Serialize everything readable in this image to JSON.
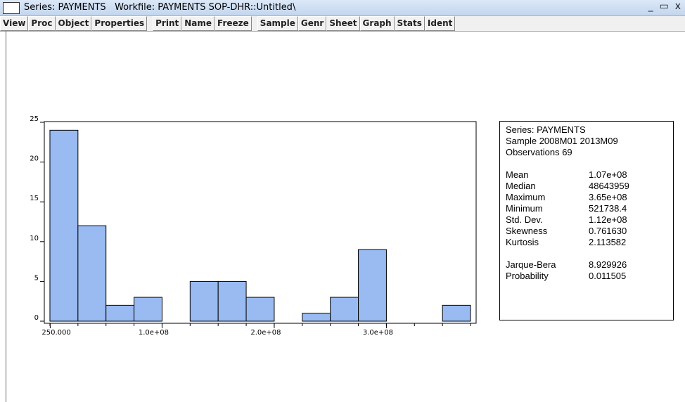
{
  "window": {
    "title": "Series: PAYMENTS   Workfile: PAYMENTS SOP-DHR::Untitled\\",
    "toolbar": [
      [
        "View",
        "Proc",
        "Object",
        "Properties"
      ],
      [
        "Print",
        "Name",
        "Freeze"
      ],
      [
        "Sample",
        "Genr",
        "Sheet",
        "Graph",
        "Stats",
        "Ident"
      ]
    ]
  },
  "chart_data": {
    "type": "histogram",
    "bins": [
      0,
      25000000,
      50000000,
      75000000,
      100000000,
      125000000,
      150000000,
      175000000,
      200000000,
      225000000,
      250000000,
      275000000,
      300000000,
      325000000,
      350000000,
      375000000
    ],
    "values": [
      24,
      12,
      2,
      3,
      0,
      5,
      5,
      3,
      0,
      1,
      3,
      9,
      0,
      0,
      2
    ],
    "color": "#99bbf2",
    "xlim": [
      -5000000,
      380000000
    ],
    "xticks": [
      {
        "value": 250000,
        "label": "250.000"
      },
      {
        "value": 100000000,
        "label": "1.0e+08"
      },
      {
        "value": 200000000,
        "label": "2.0e+08"
      },
      {
        "value": 300000000,
        "label": "3.0e+08"
      }
    ],
    "ylim": [
      0,
      25
    ],
    "yticks": [
      0,
      5,
      10,
      15,
      20,
      25
    ]
  },
  "stats": {
    "header": [
      "Series: PAYMENTS",
      "Sample 2008M01 2013M09",
      "Observations 69"
    ],
    "rows": [
      [
        "Mean",
        "1.07e+08"
      ],
      [
        "Median",
        "48643959"
      ],
      [
        "Maximum",
        "3.65e+08"
      ],
      [
        "Minimum",
        "521738.4"
      ],
      [
        "Std. Dev.",
        "1.12e+08"
      ],
      [
        "Skewness",
        "0.761630"
      ],
      [
        "Kurtosis",
        "2.113582"
      ]
    ],
    "tests": [
      [
        "Jarque-Bera",
        "8.929926"
      ],
      [
        "Probability",
        "0.011505"
      ]
    ]
  }
}
